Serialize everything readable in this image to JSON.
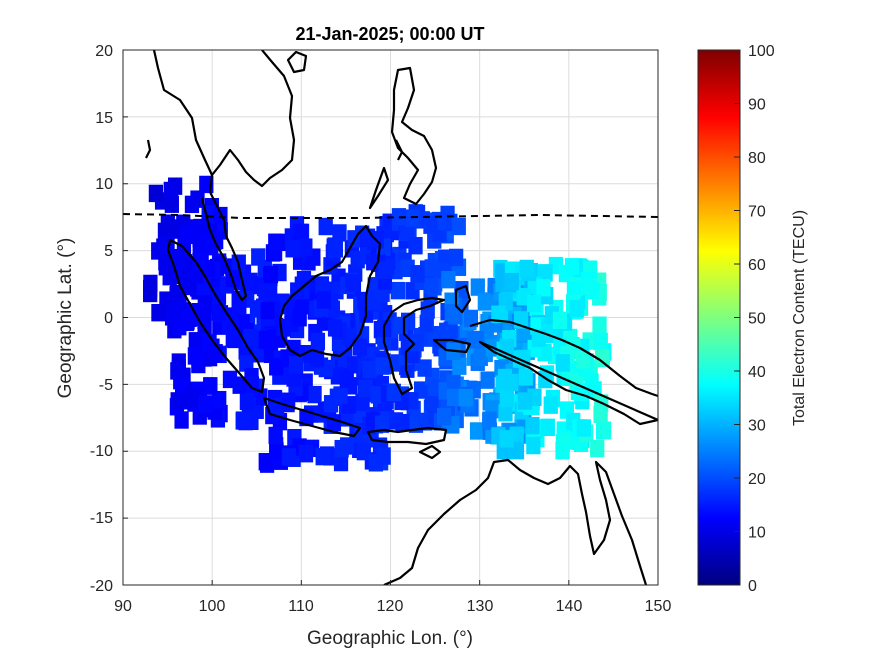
{
  "title": "21-Jan-2025; 00:00 UT",
  "xlabel": "Geographic Lon. (°)",
  "ylabel": "Geographic Lat. (°)",
  "colorbar": {
    "label": "Total Electron Content (TECU)",
    "range": [
      0,
      100
    ],
    "ticks": [
      "0",
      "10",
      "20",
      "30",
      "40",
      "50",
      "60",
      "70",
      "80",
      "90",
      "100"
    ],
    "colormap": "jet"
  },
  "axes": {
    "xlim": [
      90,
      150
    ],
    "ylim": [
      -20,
      20
    ],
    "xticks": [
      "90",
      "100",
      "110",
      "120",
      "130",
      "140",
      "150"
    ],
    "yticks": [
      "20",
      "15",
      "10",
      "5",
      "0",
      "-5",
      "-10",
      "-15",
      "-20"
    ],
    "grid": true
  },
  "chart_data": {
    "type": "heatmap",
    "title": "21-Jan-2025; 00:00 UT",
    "xlabel": "Geographic Lon. (°)",
    "ylabel": "Geographic Lat. (°)",
    "xlim": [
      90,
      150
    ],
    "ylim": [
      -20,
      20
    ],
    "value_range": [
      0,
      100
    ],
    "value_label": "Total Electron Content (TECU)",
    "regions": [
      {
        "lon_range": [
          93,
          101
        ],
        "lat_range": [
          -1,
          10
        ],
        "tec": [
          8,
          14
        ]
      },
      {
        "lon_range": [
          96,
          106
        ],
        "lat_range": [
          -8,
          5
        ],
        "tec": [
          10,
          16
        ]
      },
      {
        "lon_range": [
          106,
          120
        ],
        "lat_range": [
          -11,
          7
        ],
        "tec": [
          12,
          18
        ]
      },
      {
        "lon_range": [
          118,
          128
        ],
        "lat_range": [
          -8,
          8
        ],
        "tec": [
          14,
          22
        ]
      },
      {
        "lon_range": [
          126,
          136
        ],
        "lat_range": [
          -9,
          3
        ],
        "tec": [
          20,
          32
        ]
      },
      {
        "lon_range": [
          132,
          144
        ],
        "lat_range": [
          -10,
          4
        ],
        "tec": [
          30,
          42
        ]
      }
    ],
    "geomagnetic_equator_lat": [
      7.6,
      7.4,
      7.2,
      7.3,
      7.5,
      7.4
    ]
  }
}
